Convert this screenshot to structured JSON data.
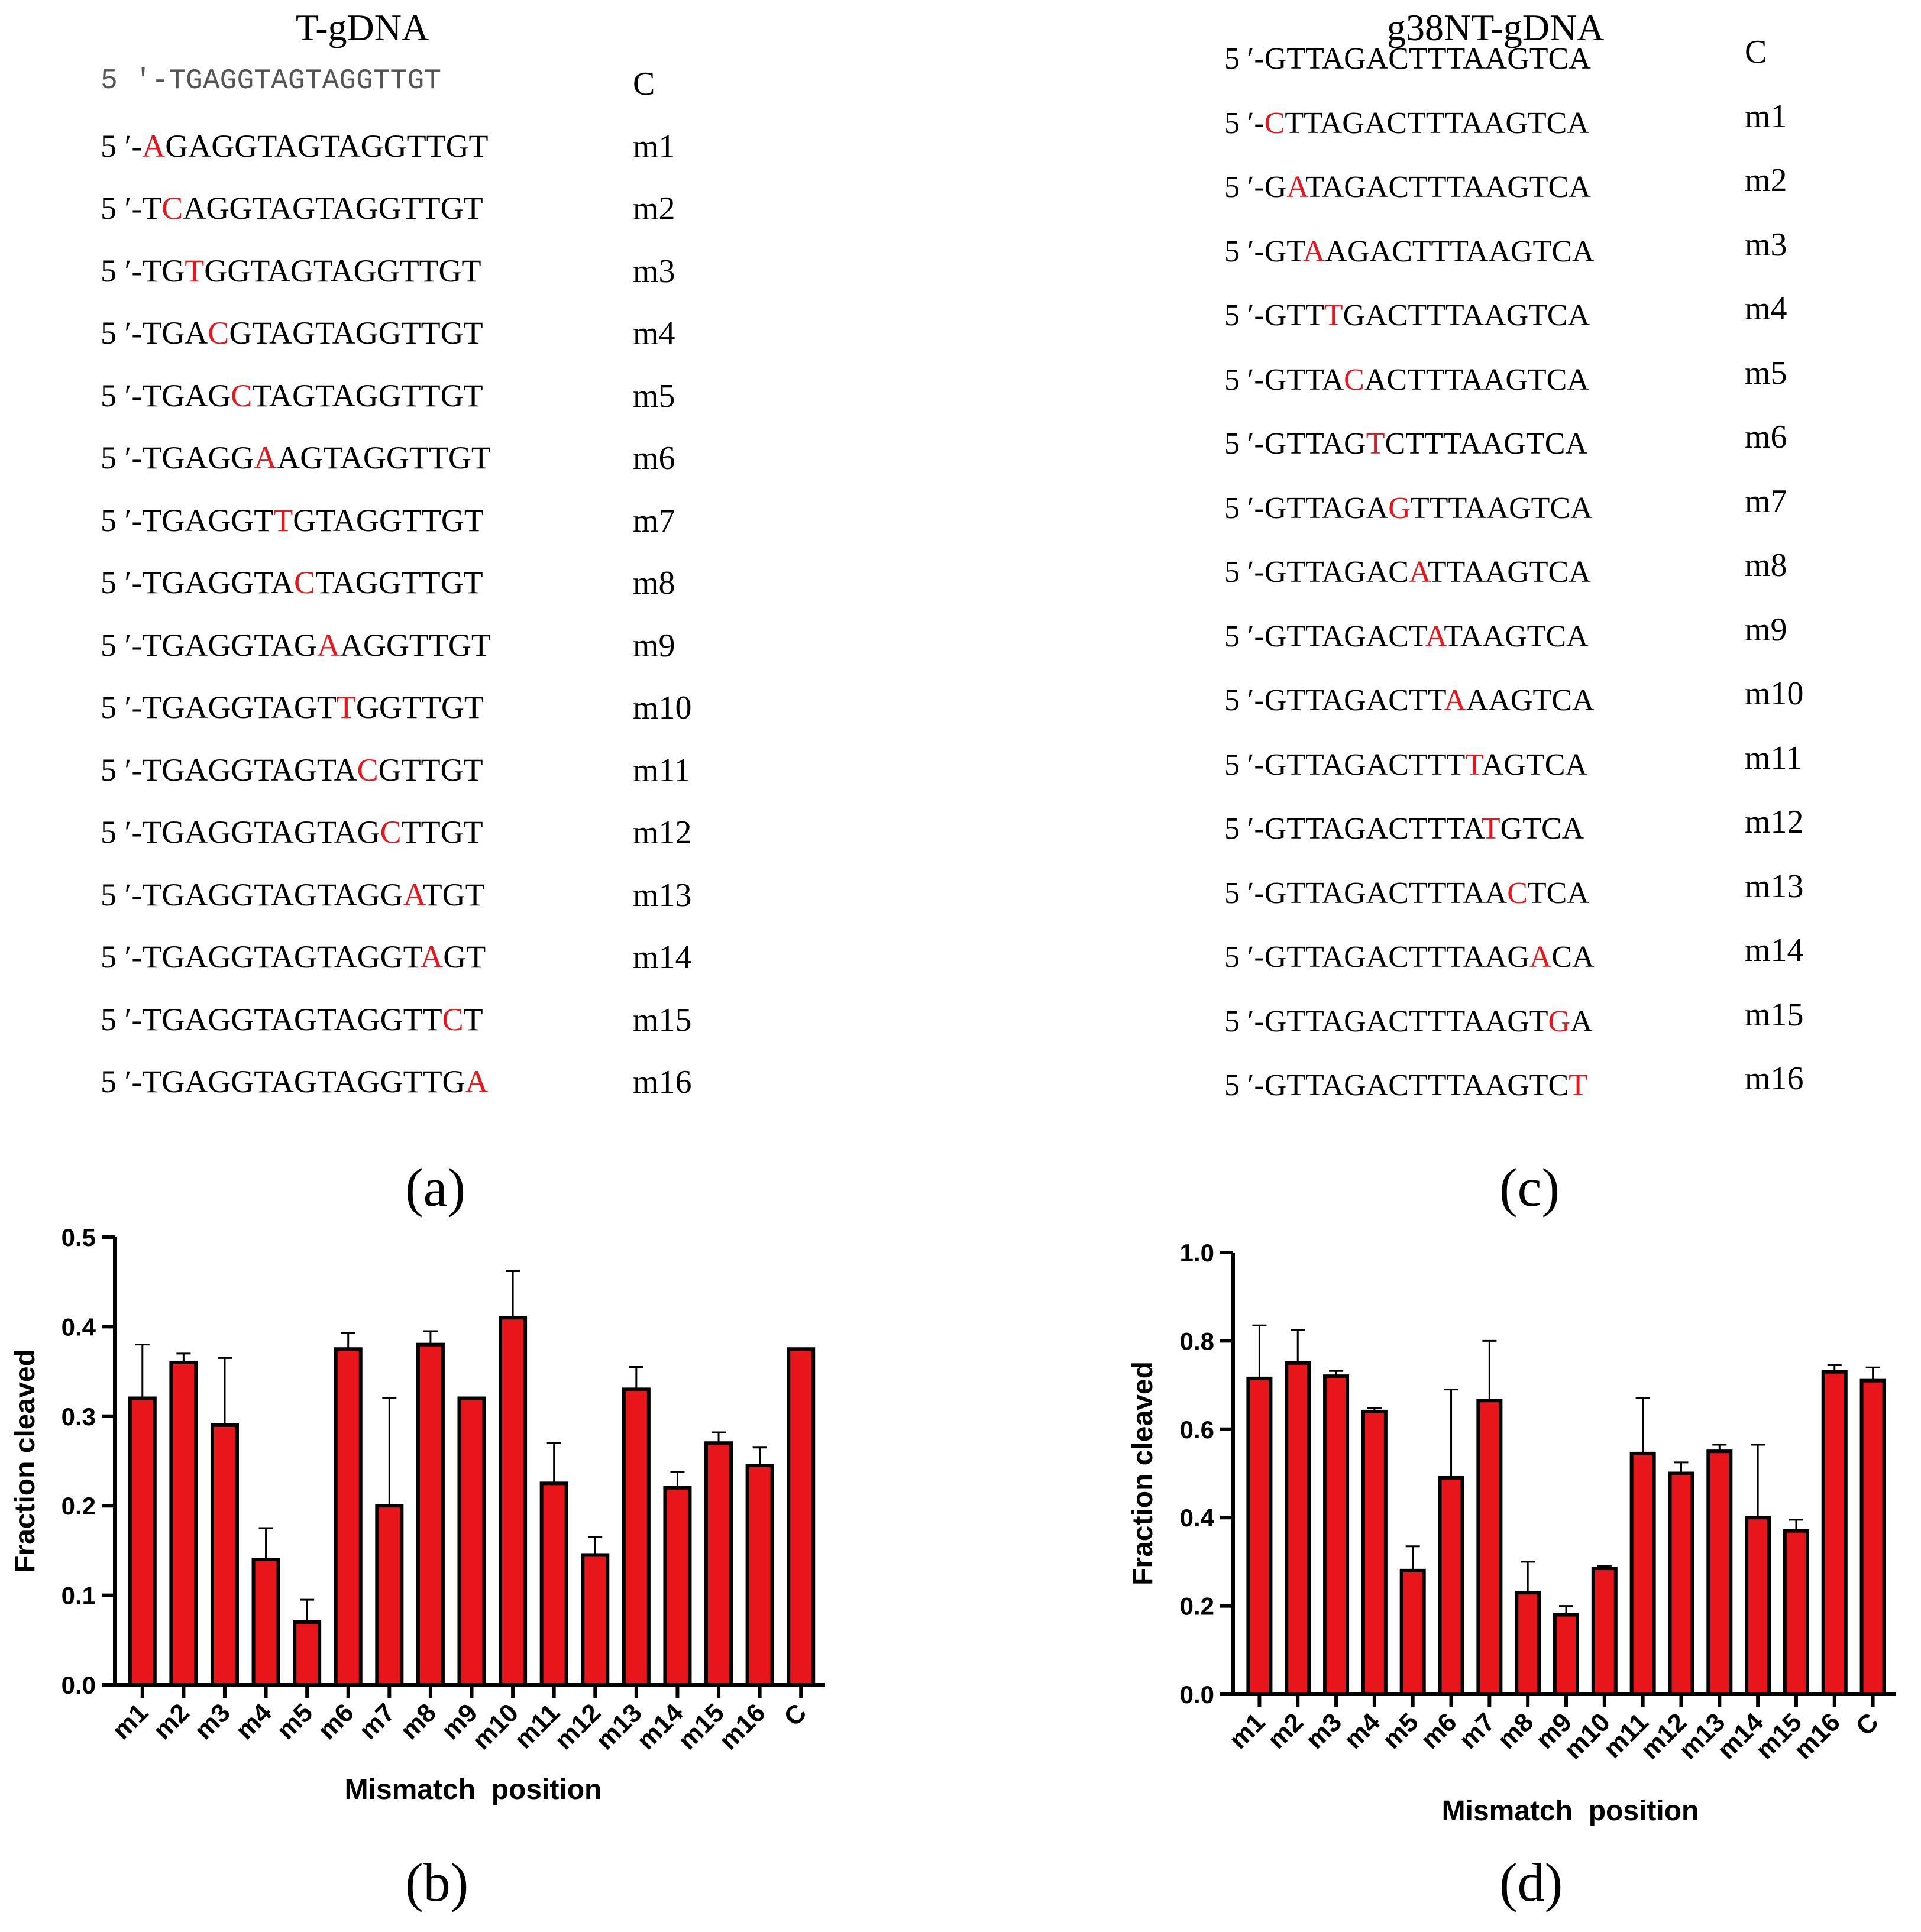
{
  "panel_a": {
    "title": "T-gDNA",
    "letter": "(a)",
    "prefix": "5 ′-",
    "rows": [
      {
        "pre": "TGAGGTAGTAGGTTGT",
        "mut": "",
        "post": "",
        "label": "C",
        "control": true
      },
      {
        "pre": "",
        "mut": "A",
        "post": "GAGGTAGTAGGTTGT",
        "label": "m1"
      },
      {
        "pre": "T",
        "mut": "C",
        "post": "AGGTAGTAGGTTGT",
        "label": "m2"
      },
      {
        "pre": "TG",
        "mut": "T",
        "post": "GGTAGTAGGTTGT",
        "label": "m3"
      },
      {
        "pre": "TGA",
        "mut": "C",
        "post": "GTAGTAGGTTGT",
        "label": "m4"
      },
      {
        "pre": "TGAG",
        "mut": "C",
        "post": "TAGTAGGTTGT",
        "label": "m5"
      },
      {
        "pre": "TGAGG",
        "mut": "A",
        "post": "AGTAGGTTGT",
        "label": "m6"
      },
      {
        "pre": "TGAGGT",
        "mut": "T",
        "post": "GTAGGTTGT",
        "label": "m7"
      },
      {
        "pre": "TGAGGTA",
        "mut": "C",
        "post": "TAGGTTGT",
        "label": "m8"
      },
      {
        "pre": "TGAGGTAG",
        "mut": "A",
        "post": "AGGTTGT",
        "label": "m9"
      },
      {
        "pre": "TGAGGTAGT",
        "mut": "T",
        "post": "GGTTGT",
        "label": "m10"
      },
      {
        "pre": "TGAGGTAGTA",
        "mut": "C",
        "post": "GTTGT",
        "label": "m11"
      },
      {
        "pre": "TGAGGTAGTAG",
        "mut": "C",
        "post": "TTGT",
        "label": "m12"
      },
      {
        "pre": "TGAGGTAGTAGG",
        "mut": "A",
        "post": "TGT",
        "label": "m13"
      },
      {
        "pre": "TGAGGTAGTAGGT",
        "mut": "A",
        "post": "GT",
        "label": "m14"
      },
      {
        "pre": "TGAGGTAGTAGGTT",
        "mut": "C",
        "post": "T",
        "label": "m15"
      },
      {
        "pre": "TGAGGTAGTAGGTTG",
        "mut": "A",
        "post": "",
        "label": "m16"
      }
    ]
  },
  "panel_c": {
    "title": "g38NT-gDNA",
    "letter": "(c)",
    "prefix": "5 ′-",
    "rows": [
      {
        "pre": "GTTAGACTTTAAGTCA",
        "mut": "",
        "post": "",
        "label": "C"
      },
      {
        "pre": "",
        "mut": "C",
        "post": "TTAGACTTTAAGTCA",
        "label": "m1"
      },
      {
        "pre": "G",
        "mut": "A",
        "post": "TAGACTTTAAGTCA",
        "label": "m2"
      },
      {
        "pre": "GT",
        "mut": "A",
        "post": "AGACTTTAAGTCA",
        "label": "m3"
      },
      {
        "pre": "GTT",
        "mut": "T",
        "post": "GACTTTAAGTCA",
        "label": "m4"
      },
      {
        "pre": "GTTA",
        "mut": "C",
        "post": "ACTTTAAGTCA",
        "label": "m5"
      },
      {
        "pre": "GTTAG",
        "mut": "T",
        "post": "CTTTAAGTCA",
        "label": "m6"
      },
      {
        "pre": "GTTAGA",
        "mut": "G",
        "post": "TTTAAGTCA",
        "label": "m7"
      },
      {
        "pre": "GTTAGAC",
        "mut": "A",
        "post": "TTAAGTCA",
        "label": "m8"
      },
      {
        "pre": "GTTAGACT",
        "mut": "A",
        "post": "TAAGTCA",
        "label": "m9"
      },
      {
        "pre": "GTTAGACTT",
        "mut": "A",
        "post": "AAGTCA",
        "label": "m10"
      },
      {
        "pre": "GTTAGACTTT",
        "mut": "T",
        "post": "AGTCA",
        "label": "m11"
      },
      {
        "pre": "GTTAGACTTTA",
        "mut": "T",
        "post": "GTCA",
        "label": "m12"
      },
      {
        "pre": "GTTAGACTTTAA",
        "mut": "C",
        "post": "TCA",
        "label": "m13"
      },
      {
        "pre": "GTTAGACTTTAAG",
        "mut": "A",
        "post": "CA",
        "label": "m14"
      },
      {
        "pre": "GTTAGACTTTAAGT",
        "mut": "G",
        "post": "A",
        "label": "m15"
      },
      {
        "pre": "GTTAGACTTTAAGTC",
        "mut": "T",
        "post": "",
        "label": "m16"
      }
    ]
  },
  "colors": {
    "bar": "#e8151b",
    "mutation": "#e8151b",
    "axis": "#000000"
  },
  "chart_data": [
    {
      "id": "chart-b",
      "letter": "(b)",
      "type": "bar",
      "xlabel": "Mismatch  position",
      "ylabel": "Fraction cleaved",
      "ylim": [
        0,
        0.5
      ],
      "yticks": [
        "0.0",
        "0.1",
        "0.2",
        "0.3",
        "0.4",
        "0.5"
      ],
      "categories": [
        "m1",
        "m2",
        "m3",
        "m4",
        "m5",
        "m6",
        "m7",
        "m8",
        "m9",
        "m10",
        "m11",
        "m12",
        "m13",
        "m14",
        "m15",
        "m16",
        "C"
      ],
      "values": [
        0.32,
        0.36,
        0.29,
        0.14,
        0.07,
        0.375,
        0.2,
        0.38,
        0.32,
        0.41,
        0.225,
        0.145,
        0.33,
        0.22,
        0.27,
        0.245,
        0.375
      ],
      "errors": [
        0.06,
        0.01,
        0.075,
        0.035,
        0.025,
        0.018,
        0.12,
        0.015,
        0,
        0.052,
        0.045,
        0.02,
        0.025,
        0.018,
        0.012,
        0.02,
        0
      ]
    },
    {
      "id": "chart-d",
      "letter": "(d)",
      "type": "bar",
      "xlabel": "Mismatch  position",
      "ylabel": "Fraction cleaved",
      "ylim": [
        0,
        1.0
      ],
      "yticks": [
        "0.0",
        "0.2",
        "0.4",
        "0.6",
        "0.8",
        "1.0"
      ],
      "categories": [
        "m1",
        "m2",
        "m3",
        "m4",
        "m5",
        "m6",
        "m7",
        "m8",
        "m9",
        "m10",
        "m11",
        "m12",
        "m13",
        "m14",
        "m15",
        "m16",
        "C"
      ],
      "values": [
        0.715,
        0.75,
        0.72,
        0.64,
        0.28,
        0.49,
        0.665,
        0.23,
        0.18,
        0.285,
        0.545,
        0.5,
        0.55,
        0.4,
        0.37,
        0.73,
        0.71
      ],
      "errors": [
        0.12,
        0.075,
        0.012,
        0.008,
        0.055,
        0.2,
        0.135,
        0.07,
        0.02,
        0.005,
        0.125,
        0.025,
        0.015,
        0.165,
        0.025,
        0.015,
        0.03
      ]
    }
  ]
}
